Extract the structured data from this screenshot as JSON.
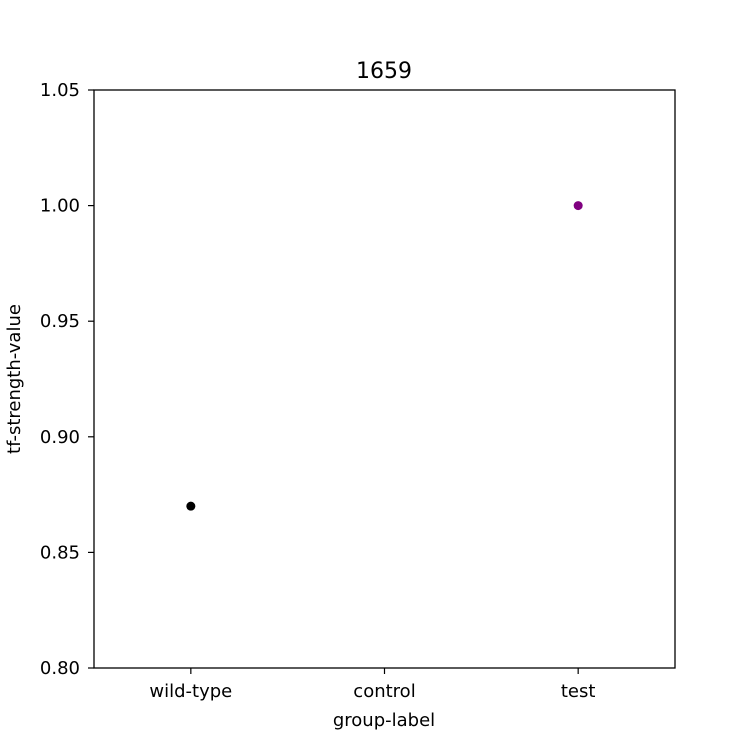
{
  "chart_data": {
    "type": "scatter",
    "title": "1659",
    "xlabel": "group-label",
    "ylabel": "tf-strength-value",
    "categories": [
      "wild-type",
      "control",
      "test"
    ],
    "ylim": [
      0.8,
      1.05
    ],
    "yticks": [
      "0.80",
      "0.85",
      "0.90",
      "0.95",
      "1.00",
      "1.05"
    ],
    "grid": false,
    "points": [
      {
        "x": "wild-type",
        "y": 0.87,
        "color": "#000000"
      },
      {
        "x": "test",
        "y": 1.0,
        "color": "#800080"
      }
    ]
  }
}
